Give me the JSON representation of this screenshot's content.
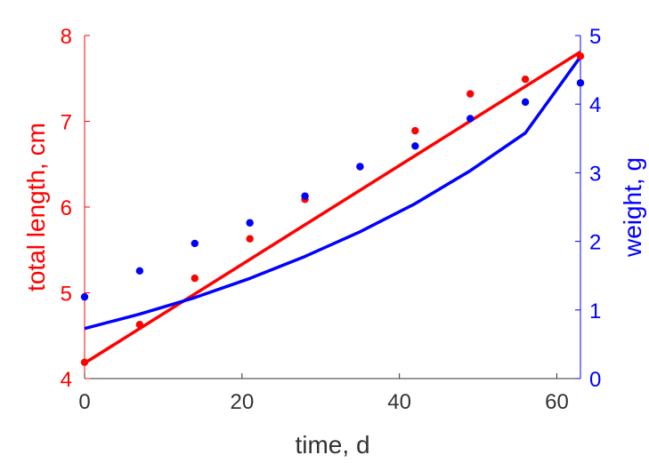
{
  "chart_data": {
    "type": "scatter",
    "x_axis": {
      "label": "time, d",
      "range": [
        0,
        63
      ],
      "ticks": [
        0,
        20,
        40,
        60
      ],
      "tick_labels": [
        "0",
        "20",
        "40",
        "60"
      ],
      "color": "#333333"
    },
    "y_axis_left": {
      "label": "total length, cm",
      "range": [
        4,
        8
      ],
      "ticks": [
        4,
        5,
        6,
        7,
        8
      ],
      "tick_labels": [
        "4",
        "5",
        "6",
        "7",
        "8"
      ],
      "color": "#ff0000"
    },
    "y_axis_right": {
      "label": "weight, g",
      "range": [
        0,
        5
      ],
      "ticks": [
        0,
        1,
        2,
        3,
        4,
        5
      ],
      "tick_labels": [
        "0",
        "1",
        "2",
        "3",
        "4",
        "5"
      ],
      "color": "#0000ff"
    },
    "grid": false,
    "legend": "none",
    "series": [
      {
        "axis": "left",
        "color": "#ff0000",
        "points": {
          "x": [
            0,
            7,
            14,
            21,
            28,
            35,
            42,
            49,
            56,
            63
          ],
          "y": [
            4.19,
            4.63,
            5.17,
            5.63,
            6.09,
            6.47,
            6.89,
            7.32,
            7.49,
            7.76
          ]
        },
        "fit": {
          "x": [
            0,
            63
          ],
          "y": [
            4.18,
            7.81
          ]
        }
      },
      {
        "axis": "right",
        "color": "#0000ff",
        "points": {
          "x": [
            0,
            7,
            14,
            21,
            28,
            35,
            42,
            49,
            56,
            63
          ],
          "y": [
            1.19,
            1.57,
            1.97,
            2.27,
            2.66,
            3.09,
            3.39,
            3.79,
            4.03,
            4.31
          ]
        },
        "fit": {
          "x": [
            0,
            7,
            14,
            21,
            28,
            35,
            42,
            49,
            56,
            63
          ],
          "y": [
            0.73,
            0.94,
            1.18,
            1.46,
            1.78,
            2.14,
            2.55,
            3.03,
            3.58,
            4.69
          ]
        }
      }
    ]
  }
}
